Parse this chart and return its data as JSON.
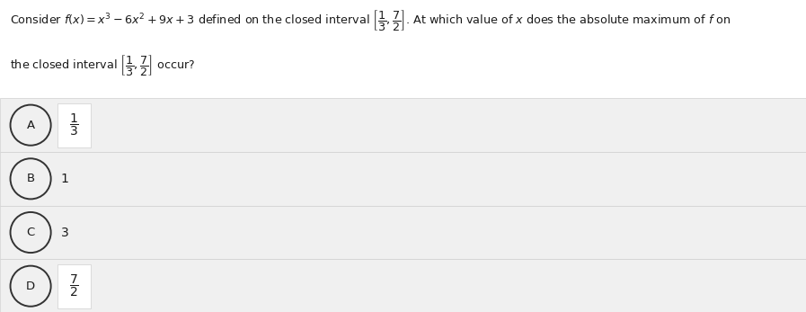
{
  "bg_color": "#ffffff",
  "option_bg_color": "#f0f0f0",
  "fraction_box_color": "#ffffff",
  "text_color": "#1a1a1a",
  "circle_edge_color": "#333333",
  "border_color": "#d0d0d0",
  "question_line1": "Consider $f\\left(x\\right)=x^3-6x^2+9x+3$ defined on the closed interval $\\left[\\dfrac{1}{3},\\dfrac{7}{2}\\right]$. At which value of $x$ does the absolute maximum of $f$ on",
  "question_line2": "the closed interval $\\left[\\dfrac{1}{3},\\dfrac{7}{2}\\right]$ occur?",
  "options": [
    {
      "label": "A",
      "value": "$\\dfrac{1}{3}$",
      "is_fraction": true
    },
    {
      "label": "B",
      "value": "$1$",
      "is_fraction": false
    },
    {
      "label": "C",
      "value": "$3$",
      "is_fraction": false
    },
    {
      "label": "D",
      "value": "$\\dfrac{7}{2}$",
      "is_fraction": true
    }
  ],
  "figwidth": 8.97,
  "figheight": 3.47,
  "dpi": 100
}
